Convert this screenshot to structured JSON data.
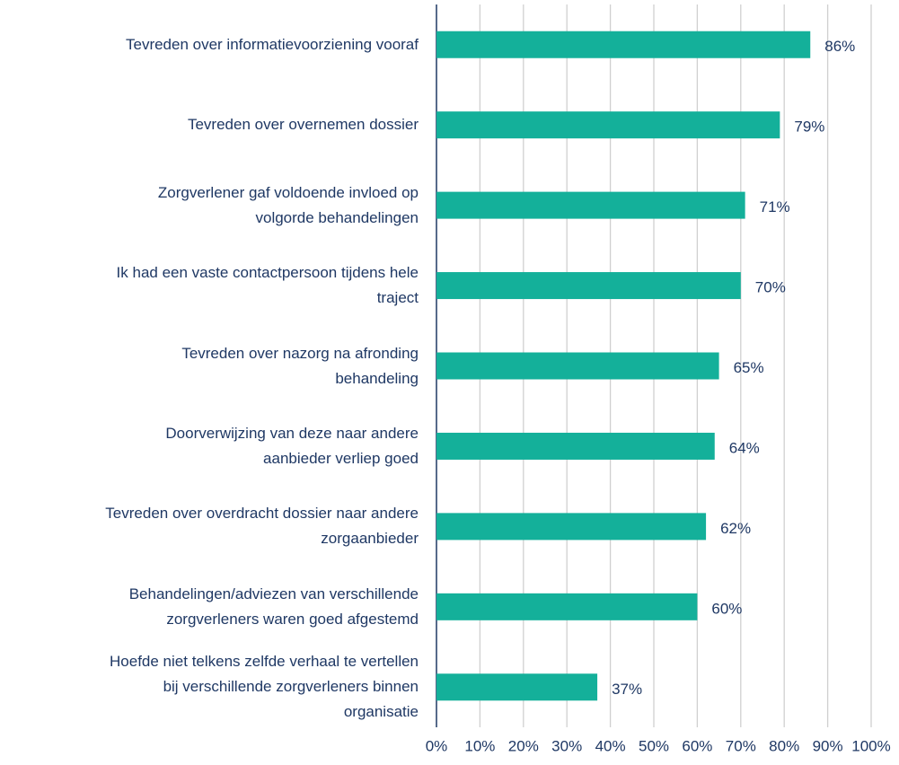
{
  "chart_data": {
    "type": "hbar",
    "categories": [
      "Tevreden over informatievoorziening vooraf",
      "Tevreden over overnemen dossier",
      "Zorgverlener gaf voldoende invloed op\nvolgorde behandelingen",
      "Ik had een vaste contactpersoon tijdens hele\ntraject",
      "Tevreden over nazorg na afronding\nbehandeling",
      "Doorverwijzing van deze naar andere\naanbieder verliep goed",
      "Tevreden over overdracht dossier naar andere\nzorgaanbieder",
      "Behandelingen/adviezen van verschillende\nzorgverleners waren goed afgestemd",
      "Hoefde niet telkens zelfde verhaal te vertellen\nbij verschillende zorgverleners binnen\norganisatie"
    ],
    "values": [
      86,
      79,
      71,
      70,
      65,
      64,
      62,
      60,
      37
    ],
    "value_labels": [
      "86%",
      "79%",
      "71%",
      "70%",
      "65%",
      "64%",
      "62%",
      "60%",
      "37%"
    ],
    "color": "#14b09a",
    "xlim": [
      0,
      100
    ],
    "xticks": [
      {
        "value": 0,
        "label": "0%"
      },
      {
        "value": 10,
        "label": "10%"
      },
      {
        "value": 20,
        "label": "20%"
      },
      {
        "value": 30,
        "label": "30%"
      },
      {
        "value": 40,
        "label": "40%"
      },
      {
        "value": 50,
        "label": "50%"
      },
      {
        "value": 60,
        "label": "60%"
      },
      {
        "value": 70,
        "label": "70%"
      },
      {
        "value": 80,
        "label": "80%"
      },
      {
        "value": 90,
        "label": "90%"
      },
      {
        "value": 100,
        "label": "100%"
      }
    ],
    "grid": true
  }
}
